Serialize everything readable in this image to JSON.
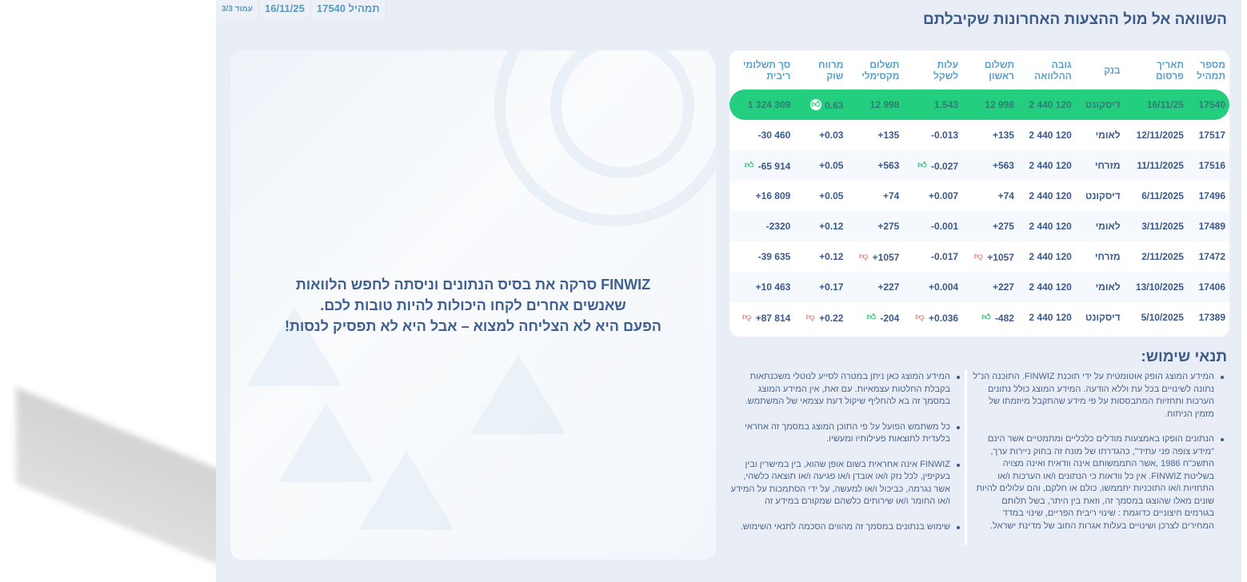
{
  "topbar": {
    "loan_label": "תמהיל 17540",
    "date": "16/11/25",
    "page": "עמוד 3/3"
  },
  "title": "השוואה אל מול ההצעות האחרונות שקיבלתם",
  "message": [
    "FINWIZ סרקה את בסיס הנתונים וניסתה לחפש הלוואות",
    "שאנשים אחרים לקחו היכולות להיות טובות לכם.",
    "הפעם היא לא הצליחה למצוא – אבל היא לא תפסיק לנסות!"
  ],
  "table": {
    "headers": [
      [
        "מספר",
        "תמהיל"
      ],
      [
        "תאריך",
        "פרסום"
      ],
      [
        "",
        "בנק"
      ],
      [
        "גובה",
        "ההלוואה"
      ],
      [
        "תשלום",
        "ראשון"
      ],
      [
        "עלות",
        "לשקל"
      ],
      [
        "תשלום",
        "מקסימלי"
      ],
      [
        "מרווח",
        "שוק"
      ],
      [
        "סך תשלומי",
        "ריבית"
      ]
    ],
    "rows": [
      {
        "cells": [
          "17540",
          "16/11/25",
          "דיסקונט",
          "2 440 120",
          "12 998",
          "1.543",
          "12 998",
          "0.63",
          "1 324 309"
        ],
        "icons": {
          "7": "thumb-up-white"
        },
        "highlight": true
      },
      {
        "cells": [
          "17517",
          "12/11/2025",
          "לאומי",
          "2 440 120",
          "+135",
          "-0.013",
          "+135",
          "+0.03",
          "-30 460"
        ],
        "icons": {}
      },
      {
        "cells": [
          "17516",
          "11/11/2025",
          "מזרחי",
          "2 440 120",
          "+563",
          "-0.027",
          "+563",
          "+0.05",
          "-65 914"
        ],
        "icons": {
          "5": "thumb-up",
          "8": "thumb-up"
        }
      },
      {
        "cells": [
          "17496",
          "6/11/2025",
          "דיסקונט",
          "2 440 120",
          "+74",
          "+0.007",
          "+74",
          "+0.05",
          "+16 809"
        ],
        "icons": {}
      },
      {
        "cells": [
          "17489",
          "3/11/2025",
          "לאומי",
          "2 440 120",
          "+275",
          "-0.001",
          "+275",
          "+0.12",
          "-2320"
        ],
        "icons": {}
      },
      {
        "cells": [
          "17472",
          "2/11/2025",
          "מזרחי",
          "2 440 120",
          "+1057",
          "-0.017",
          "+1057",
          "+0.12",
          "-39 635"
        ],
        "icons": {
          "4": "thumb-down",
          "6": "thumb-down"
        }
      },
      {
        "cells": [
          "17406",
          "13/10/2025",
          "לאומי",
          "2 440 120",
          "+227",
          "+0.004",
          "+227",
          "+0.17",
          "+10 463"
        ],
        "icons": {}
      },
      {
        "cells": [
          "17389",
          "5/10/2025",
          "דיסקונט",
          "2 440 120",
          "-482",
          "+0.036",
          "-204",
          "+0.22",
          "+87 814"
        ],
        "icons": {
          "4": "thumb-up",
          "5": "thumb-down",
          "6": "thumb-up",
          "7": "thumb-down",
          "8": "thumb-down"
        }
      }
    ]
  },
  "terms": {
    "title": "תנאי שימוש:",
    "right": [
      "המידע המוצג הופק אוטומטית על ידי תוכנת FINWIZ. התוכנה הנ\"ל נתונה לשינויים בכל עת וללא הודעה. המידע המוצג כולל נתונים הערכות ותחזיות המתבססות על פי מידע שהתקבל מיוזמתו של מזמין הניתוח.",
      "הנתונים הופקו באמצעות מודלים כלכליים ומתמטיים אשר הינם \"מידע צופה פני עתיד\", כהגדרתו של מונח זה בחוק ניירות ערך, התשכ\"ח 1986 ,אשר התממשותם אינה וודאית ואינה מצויה בשליטת FINWIZ. אין כל וודאות כי הנתונים ו/או הערכות ו/או התחזיות ו/או התוכניות יתממשו, כולם או חלקם, והם עלולים להיות שונים מאלו שהוצגו במסמך זה, וזאת בין היתר, בשל תלותם בגורמים חיצוניים כדוגמת : שינוי ריבית הפריים, שינוי במדד המחירים לצרכן ושינויים בעלות אגרות החוב של מדינת ישראל."
    ],
    "left": [
      "המידע המוצג כאן ניתן במטרה לסייע לנוטלי משכנתאות בקבלת החלטות עצמאיות. עם זאת, אין המידע המוצג במסמך זה בא להחליף שיקול דעת עצמאי של המשתמש.",
      "כל משתמש הפועל על פי התוכן המוצג במסמך זה אחראי בלעדית לתוצאות פעילותיו ומעשיו.",
      "FINWIZ אינה אחראית בשום אופן שהוא, בין במישרין ובין בעקיפין, לכל נזק ו/או אובדן ו/או פגיעה ו/או תוצאה כלשהי, אשר נגרמה, כביכול ו/או למעשה, על ידי הסתמכות על המידע ו/או החומר ו/או שירותים כלשהם שמקורם במידע זה",
      "שימוש בנתונים במסמך זה מהווים הסכמה לתנאי השימוש."
    ]
  },
  "colors": {
    "highlight": "#23cf7e",
    "thumb_up": "#3cc07a",
    "thumb_down": "#e08a8a",
    "text": "#3b5a8a",
    "header": "#5aa0c8"
  }
}
